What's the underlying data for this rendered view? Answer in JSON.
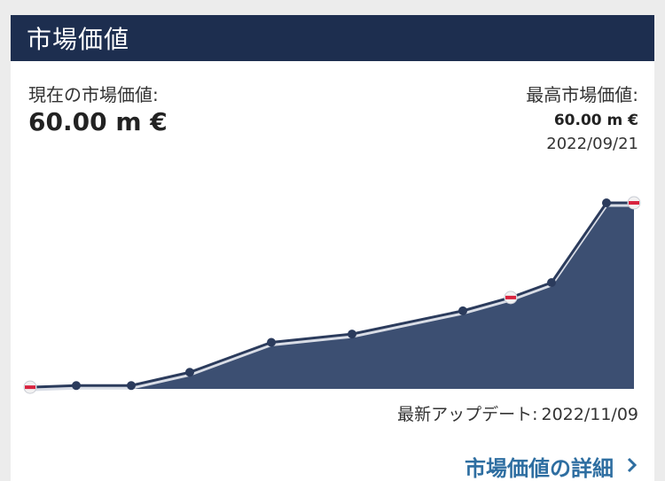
{
  "header": {
    "title": "市場価値"
  },
  "current": {
    "label": "現在の市場価値:",
    "value": "60.00 m €"
  },
  "highest": {
    "label": "最高市場価値:",
    "value": "60.00 m €",
    "date": "2022/09/21"
  },
  "update": {
    "label": "最新アップデート:",
    "date": "2022/11/09"
  },
  "details": {
    "label": "市場価値の詳細",
    "icon": "chevron-right-icon"
  },
  "colors": {
    "header_bg": "#1d2e4f",
    "area_fill": "#3c4f72",
    "line": "#2b3b5c",
    "link": "#2e6ea1"
  },
  "chart_data": {
    "type": "area",
    "x": [
      0,
      1,
      2,
      3,
      4,
      5,
      6,
      7,
      8,
      9,
      10
    ],
    "values": [
      1.0,
      2.0,
      2.0,
      10.0,
      28.0,
      33.0,
      47.0,
      55.0,
      64.0,
      112.0,
      112.0
    ],
    "club_marker_indexes": [
      0,
      7,
      10
    ],
    "ylim": [
      0,
      120
    ],
    "xlabel": "",
    "ylabel": ""
  }
}
